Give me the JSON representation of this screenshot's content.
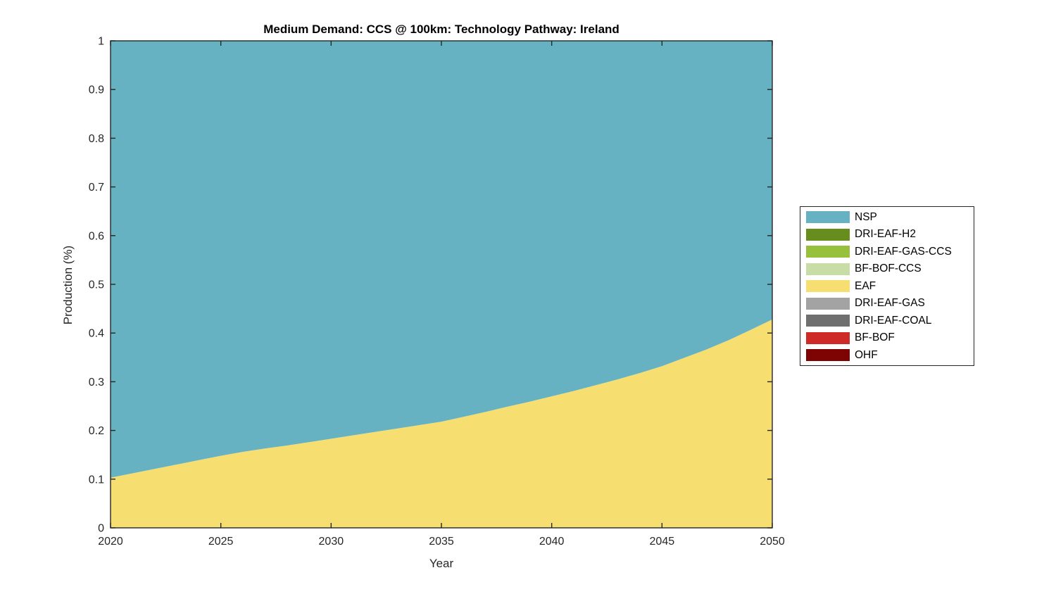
{
  "title": "Medium Demand: CCS @ 100km: Technology Pathway: Ireland",
  "chart_data": {
    "type": "area",
    "stacked": true,
    "title": "Medium Demand: CCS @ 100km: Technology Pathway: Ireland",
    "xlabel": "Year",
    "ylabel": "Production (%)",
    "xlim": [
      2020,
      2050
    ],
    "ylim": [
      0,
      1
    ],
    "grid": false,
    "legend_position": "right-outside",
    "axis_color": "#262626",
    "x_ticks": [
      2020,
      2025,
      2030,
      2035,
      2040,
      2045,
      2050
    ],
    "x_tick_labels": [
      "2020",
      "2025",
      "2030",
      "2035",
      "2040",
      "2045",
      "2050"
    ],
    "y_ticks": [
      0,
      0.1,
      0.2,
      0.3,
      0.4,
      0.5,
      0.6,
      0.7,
      0.8,
      0.9,
      1
    ],
    "y_tick_labels": [
      "0",
      "0.1",
      "0.2",
      "0.3",
      "0.4",
      "0.5",
      "0.6",
      "0.7",
      "0.8",
      "0.9",
      "1"
    ],
    "x": [
      2020,
      2021,
      2022,
      2023,
      2024,
      2025,
      2026,
      2027,
      2028,
      2029,
      2030,
      2031,
      2032,
      2033,
      2034,
      2035,
      2036,
      2037,
      2038,
      2039,
      2040,
      2041,
      2042,
      2043,
      2044,
      2045,
      2046,
      2047,
      2048,
      2049,
      2050
    ],
    "stack_order_bottom_to_top": [
      "OHF",
      "BF-BOF",
      "DRI-EAF-COAL",
      "DRI-EAF-GAS",
      "EAF",
      "BF-BOF-CCS",
      "DRI-EAF-GAS-CCS",
      "DRI-EAF-H2",
      "NSP"
    ],
    "series": [
      {
        "name": "NSP",
        "color": "#66b2c3",
        "values": [
          0.897,
          0.888,
          0.879,
          0.87,
          0.861,
          0.852,
          0.844,
          0.837,
          0.831,
          0.824,
          0.817,
          0.81,
          0.803,
          0.796,
          0.789,
          0.782,
          0.772,
          0.762,
          0.751,
          0.741,
          0.73,
          0.719,
          0.707,
          0.695,
          0.682,
          0.668,
          0.651,
          0.634,
          0.615,
          0.594,
          0.572
        ]
      },
      {
        "name": "DRI-EAF-H2",
        "color": "#668d1e",
        "values": [
          0,
          0,
          0,
          0,
          0,
          0,
          0,
          0,
          0,
          0,
          0,
          0,
          0,
          0,
          0,
          0,
          0,
          0,
          0,
          0,
          0,
          0,
          0,
          0,
          0,
          0,
          0,
          0,
          0,
          0,
          0
        ]
      },
      {
        "name": "DRI-EAF-GAS-CCS",
        "color": "#97c13d",
        "values": [
          0,
          0,
          0,
          0,
          0,
          0,
          0,
          0,
          0,
          0,
          0,
          0,
          0,
          0,
          0,
          0,
          0,
          0,
          0,
          0,
          0,
          0,
          0,
          0,
          0,
          0,
          0,
          0,
          0,
          0,
          0
        ]
      },
      {
        "name": "BF-BOF-CCS",
        "color": "#c7dda5",
        "values": [
          0,
          0,
          0,
          0,
          0,
          0,
          0,
          0,
          0,
          0,
          0,
          0,
          0,
          0,
          0,
          0,
          0,
          0,
          0,
          0,
          0,
          0,
          0,
          0,
          0,
          0,
          0,
          0,
          0,
          0,
          0
        ]
      },
      {
        "name": "EAF",
        "color": "#f6de71",
        "values": [
          0.103,
          0.112,
          0.121,
          0.13,
          0.139,
          0.148,
          0.156,
          0.163,
          0.169,
          0.176,
          0.183,
          0.19,
          0.197,
          0.204,
          0.211,
          0.218,
          0.228,
          0.238,
          0.249,
          0.259,
          0.27,
          0.281,
          0.293,
          0.305,
          0.318,
          0.332,
          0.349,
          0.366,
          0.385,
          0.406,
          0.428
        ]
      },
      {
        "name": "DRI-EAF-GAS",
        "color": "#a3a3a3",
        "values": [
          0,
          0,
          0,
          0,
          0,
          0,
          0,
          0,
          0,
          0,
          0,
          0,
          0,
          0,
          0,
          0,
          0,
          0,
          0,
          0,
          0,
          0,
          0,
          0,
          0,
          0,
          0,
          0,
          0,
          0,
          0
        ]
      },
      {
        "name": "DRI-EAF-COAL",
        "color": "#6f6f6f",
        "values": [
          0,
          0,
          0,
          0,
          0,
          0,
          0,
          0,
          0,
          0,
          0,
          0,
          0,
          0,
          0,
          0,
          0,
          0,
          0,
          0,
          0,
          0,
          0,
          0,
          0,
          0,
          0,
          0,
          0,
          0,
          0
        ]
      },
      {
        "name": "BF-BOF",
        "color": "#cd2a28",
        "values": [
          0,
          0,
          0,
          0,
          0,
          0,
          0,
          0,
          0,
          0,
          0,
          0,
          0,
          0,
          0,
          0,
          0,
          0,
          0,
          0,
          0,
          0,
          0,
          0,
          0,
          0,
          0,
          0,
          0,
          0,
          0
        ]
      },
      {
        "name": "OHF",
        "color": "#7e0403",
        "values": [
          0,
          0,
          0,
          0,
          0,
          0,
          0,
          0,
          0,
          0,
          0,
          0,
          0,
          0,
          0,
          0,
          0,
          0,
          0,
          0,
          0,
          0,
          0,
          0,
          0,
          0,
          0,
          0,
          0,
          0,
          0
        ]
      }
    ]
  },
  "legend": {
    "entries": [
      {
        "label": "NSP",
        "color": "#66b2c3"
      },
      {
        "label": "DRI-EAF-H2",
        "color": "#668d1e"
      },
      {
        "label": "DRI-EAF-GAS-CCS",
        "color": "#97c13d"
      },
      {
        "label": "BF-BOF-CCS",
        "color": "#c7dda5"
      },
      {
        "label": "EAF",
        "color": "#f6de71"
      },
      {
        "label": "DRI-EAF-GAS",
        "color": "#a3a3a3"
      },
      {
        "label": "DRI-EAF-COAL",
        "color": "#6f6f6f"
      },
      {
        "label": "BF-BOF",
        "color": "#cd2a28"
      },
      {
        "label": "OHF",
        "color": "#7e0403"
      }
    ]
  }
}
